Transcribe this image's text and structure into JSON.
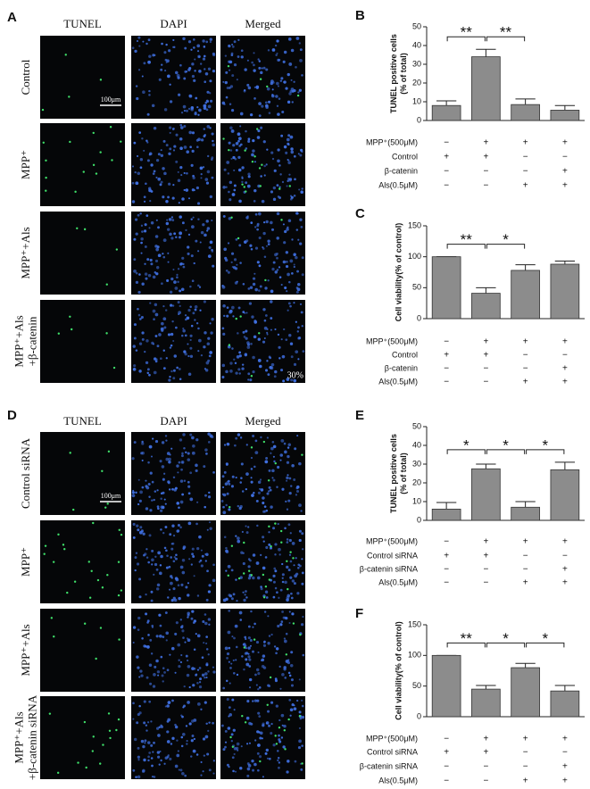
{
  "image_panels": [
    {
      "label": "A",
      "columns": [
        "TUNEL",
        "DAPI",
        "Merged"
      ],
      "rows": [
        [
          "Control"
        ],
        [
          "MPP⁺"
        ],
        [
          "MPP⁺+Als"
        ],
        [
          "MPP⁺+Als",
          "+β-catenin"
        ]
      ],
      "scale_bar": "100μm",
      "corner_note": "30%"
    },
    {
      "label": "D",
      "columns": [
        "TUNEL",
        "DAPI",
        "Merged"
      ],
      "rows": [
        [
          "Control siRNA"
        ],
        [
          "MPP⁺"
        ],
        [
          "MPP⁺+Als"
        ],
        [
          "MPP⁺+Als",
          "+β-catenin siRNA"
        ]
      ],
      "scale_bar": "100μm"
    }
  ],
  "chart_data": [
    {
      "type": "bar",
      "label": "B",
      "ylabel": [
        "TUNEL positive cells",
        "(% of total)"
      ],
      "values": [
        8,
        34,
        8.5,
        5.5
      ],
      "errors": [
        2.5,
        4,
        3,
        2.5
      ],
      "color": "#8c8c8c",
      "ylim": [
        0,
        50
      ],
      "yticks": [
        0,
        10,
        20,
        30,
        40,
        50
      ],
      "significance": [
        {
          "from": 0,
          "to": 1,
          "text": "**"
        },
        {
          "from": 1,
          "to": 2,
          "text": "**"
        }
      ],
      "conditions": [
        {
          "name": "MPP⁺(500μM)",
          "signs": [
            "−",
            "+",
            "+",
            "+"
          ]
        },
        {
          "name": "Control",
          "signs": [
            "+",
            "+",
            "−",
            "−"
          ]
        },
        {
          "name": "β-catenin",
          "signs": [
            "−",
            "−",
            "−",
            "+"
          ]
        },
        {
          "name": "Als(0.5μM)",
          "signs": [
            "−",
            "−",
            "+",
            "+"
          ]
        }
      ]
    },
    {
      "type": "bar",
      "label": "C",
      "ylabel": [
        "Cell viability(% of control)"
      ],
      "values": [
        100,
        41,
        78,
        88
      ],
      "errors": [
        0,
        9,
        9,
        5
      ],
      "color": "#8c8c8c",
      "ylim": [
        0,
        150
      ],
      "yticks": [
        0,
        50,
        100,
        150
      ],
      "significance": [
        {
          "from": 0,
          "to": 1,
          "text": "**"
        },
        {
          "from": 1,
          "to": 2,
          "text": "*"
        }
      ],
      "conditions": [
        {
          "name": "MPP⁺(500μM)",
          "signs": [
            "−",
            "+",
            "+",
            "+"
          ]
        },
        {
          "name": "Control",
          "signs": [
            "+",
            "+",
            "−",
            "−"
          ]
        },
        {
          "name": "β-catenin",
          "signs": [
            "−",
            "−",
            "−",
            "+"
          ]
        },
        {
          "name": "Als(0.5μM)",
          "signs": [
            "−",
            "−",
            "+",
            "+"
          ]
        }
      ]
    },
    {
      "type": "bar",
      "label": "E",
      "ylabel": [
        "TUNEL positive cells",
        "(% of total)"
      ],
      "values": [
        6,
        27.5,
        7,
        27
      ],
      "errors": [
        3.5,
        2.5,
        3,
        4
      ],
      "color": "#8c8c8c",
      "ylim": [
        0,
        50
      ],
      "yticks": [
        0,
        10,
        20,
        30,
        40,
        50
      ],
      "significance": [
        {
          "from": 0,
          "to": 1,
          "text": "*"
        },
        {
          "from": 1,
          "to": 2,
          "text": "*"
        },
        {
          "from": 2,
          "to": 3,
          "text": "*"
        }
      ],
      "conditions": [
        {
          "name": "MPP⁺(500μM)",
          "signs": [
            "−",
            "+",
            "+",
            "+"
          ]
        },
        {
          "name": "Control siRNA",
          "signs": [
            "+",
            "+",
            "−",
            "−"
          ]
        },
        {
          "name": "β-catenin siRNA",
          "signs": [
            "−",
            "−",
            "−",
            "+"
          ]
        },
        {
          "name": "Als(0.5μM)",
          "signs": [
            "−",
            "−",
            "+",
            "+"
          ]
        }
      ]
    },
    {
      "type": "bar",
      "label": "F",
      "ylabel": [
        "Cell viability(% of control)"
      ],
      "values": [
        100,
        45,
        80,
        42
      ],
      "errors": [
        0,
        6,
        7,
        9
      ],
      "color": "#8c8c8c",
      "ylim": [
        0,
        150
      ],
      "yticks": [
        0,
        50,
        100,
        150
      ],
      "significance": [
        {
          "from": 0,
          "to": 1,
          "text": "**"
        },
        {
          "from": 1,
          "to": 2,
          "text": "*"
        },
        {
          "from": 2,
          "to": 3,
          "text": "*"
        }
      ],
      "conditions": [
        {
          "name": "MPP⁺(500μM)",
          "signs": [
            "−",
            "+",
            "+",
            "+"
          ]
        },
        {
          "name": "Control siRNA",
          "signs": [
            "+",
            "+",
            "−",
            "−"
          ]
        },
        {
          "name": "β-catenin siRNA",
          "signs": [
            "−",
            "−",
            "−",
            "+"
          ]
        },
        {
          "name": "Als(0.5μM)",
          "signs": [
            "−",
            "−",
            "+",
            "+"
          ]
        }
      ]
    }
  ]
}
